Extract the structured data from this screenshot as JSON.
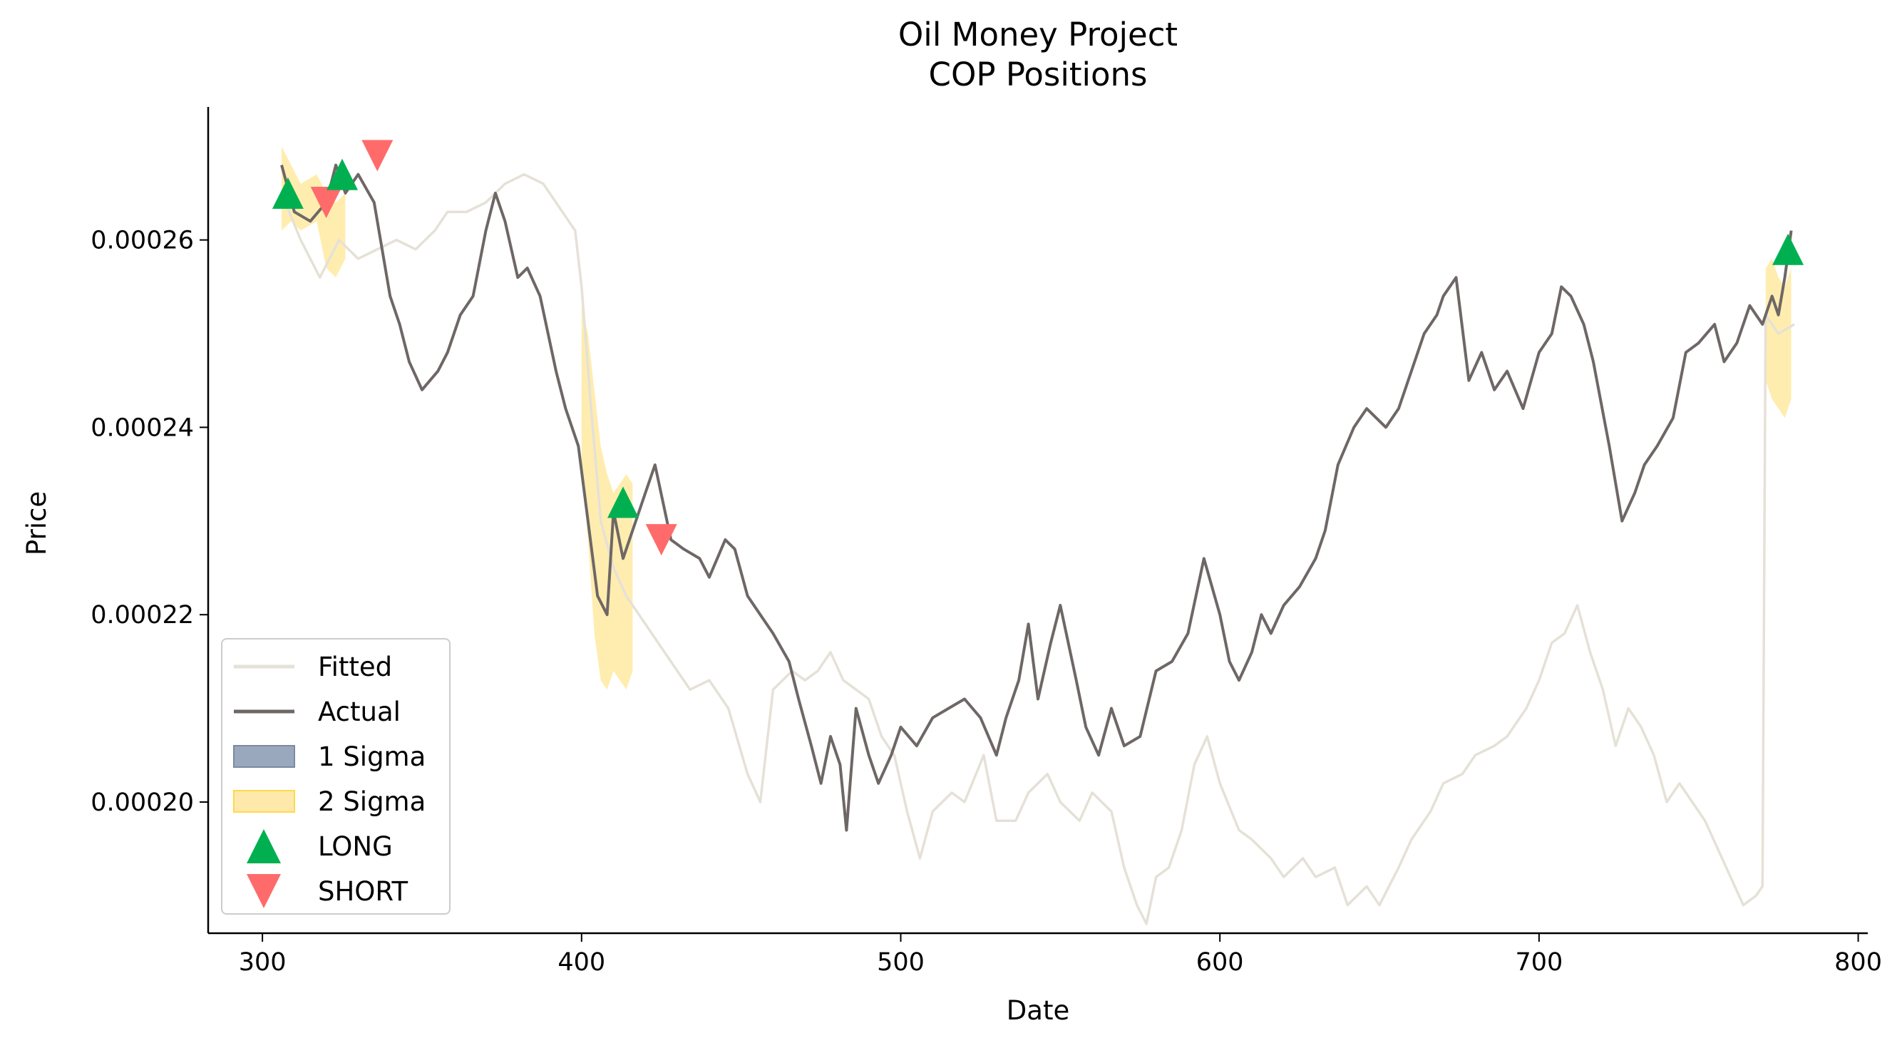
{
  "chart_data": {
    "type": "line",
    "title": "Oil Money Project",
    "subtitle": "COP Positions",
    "xlabel": "Date",
    "ylabel": "Price",
    "xlim": [
      283,
      803
    ],
    "ylim": [
      0.000186,
      0.0002742
    ],
    "x_ticks": [
      300,
      400,
      500,
      600,
      700,
      800
    ],
    "x_tick_labels": [
      "300",
      "400",
      "500",
      "600",
      "700",
      "800"
    ],
    "y_ticks": [
      0.0002,
      0.00022,
      0.00024,
      0.00026
    ],
    "y_tick_labels": [
      "0.00020",
      "0.00022",
      "0.00024",
      "0.00026"
    ],
    "grid": false,
    "legend_position": "bottom-left",
    "legend": [
      {
        "label": "Fitted",
        "kind": "line",
        "color": "#e5e1d7"
      },
      {
        "label": "Actual",
        "kind": "line",
        "color": "#6e6766"
      },
      {
        "label": "1 Sigma",
        "kind": "patch",
        "color": "#9aa8be"
      },
      {
        "label": "2 Sigma",
        "kind": "patch",
        "color": "#ffe9aa"
      },
      {
        "label": "LONG",
        "kind": "marker-up",
        "color": "#00b050"
      },
      {
        "label": "SHORT",
        "kind": "marker-down",
        "color": "#ff6b6b"
      }
    ],
    "colors": {
      "actual": "#6e6766",
      "fitted": "#e5e1d7",
      "sigma1": "#9aa8be",
      "sigma2": "#ffd84d",
      "long": "#00b050",
      "short": "#ff6b6b"
    },
    "series": [
      {
        "name": "Actual",
        "x": [
          306,
          310,
          315,
          320,
          323,
          326,
          330,
          335,
          340,
          343,
          346,
          350,
          355,
          358,
          362,
          366,
          370,
          373,
          376,
          380,
          383,
          387,
          392,
          395,
          399,
          402,
          405,
          408,
          410,
          413,
          416,
          420,
          423,
          428,
          432,
          437,
          440,
          445,
          448,
          452,
          456,
          460,
          465,
          468,
          472,
          475,
          478,
          481,
          483,
          486,
          490,
          493,
          497,
          500,
          505,
          510,
          515,
          520,
          525,
          530,
          533,
          537,
          540,
          543,
          547,
          550,
          555,
          558,
          562,
          566,
          570,
          575,
          580,
          585,
          590,
          595,
          600,
          603,
          606,
          610,
          613,
          616,
          620,
          625,
          630,
          633,
          637,
          642,
          646,
          652,
          656,
          660,
          664,
          668,
          670,
          674,
          678,
          682,
          686,
          690,
          695,
          700,
          704,
          707,
          710,
          714,
          717,
          722,
          726,
          730,
          733,
          737,
          742,
          746,
          750,
          755,
          758,
          762,
          766,
          770,
          773,
          775,
          777,
          779
        ],
        "y": [
          0.000268,
          0.000263,
          0.000262,
          0.000264,
          0.000268,
          0.000265,
          0.000267,
          0.000264,
          0.000254,
          0.000251,
          0.000247,
          0.000244,
          0.000246,
          0.000248,
          0.000252,
          0.000254,
          0.000261,
          0.000265,
          0.000262,
          0.000256,
          0.000257,
          0.000254,
          0.000246,
          0.000242,
          0.000238,
          0.00023,
          0.000222,
          0.00022,
          0.000231,
          0.000226,
          0.000229,
          0.000233,
          0.000236,
          0.000228,
          0.000227,
          0.000226,
          0.000224,
          0.000228,
          0.000227,
          0.000222,
          0.00022,
          0.000218,
          0.000215,
          0.000211,
          0.000206,
          0.000202,
          0.000207,
          0.000204,
          0.000197,
          0.00021,
          0.000205,
          0.000202,
          0.000205,
          0.000208,
          0.000206,
          0.000209,
          0.00021,
          0.000211,
          0.000209,
          0.000205,
          0.000209,
          0.000213,
          0.000219,
          0.000211,
          0.000217,
          0.000221,
          0.000213,
          0.000208,
          0.000205,
          0.00021,
          0.000206,
          0.000207,
          0.000214,
          0.000215,
          0.000218,
          0.000226,
          0.00022,
          0.000215,
          0.000213,
          0.000216,
          0.00022,
          0.000218,
          0.000221,
          0.000223,
          0.000226,
          0.000229,
          0.000236,
          0.00024,
          0.000242,
          0.00024,
          0.000242,
          0.000246,
          0.00025,
          0.000252,
          0.000254,
          0.000256,
          0.000245,
          0.000248,
          0.000244,
          0.000246,
          0.000242,
          0.000248,
          0.00025,
          0.000255,
          0.000254,
          0.000251,
          0.000247,
          0.000238,
          0.00023,
          0.000233,
          0.000236,
          0.000238,
          0.000241,
          0.000248,
          0.000249,
          0.000251,
          0.000247,
          0.000249,
          0.000253,
          0.000251,
          0.000254,
          0.000252,
          0.000256,
          0.000261
        ]
      },
      {
        "name": "Fitted",
        "x": [
          306,
          312,
          318,
          324,
          330,
          336,
          342,
          348,
          354,
          358,
          364,
          370,
          376,
          382,
          388,
          394,
          398,
          400,
          403,
          406,
          410,
          414,
          420,
          426,
          430,
          434,
          440,
          446,
          452,
          456,
          460,
          466,
          470,
          474,
          478,
          482,
          486,
          490,
          494,
          498,
          502,
          506,
          510,
          516,
          520,
          526,
          530,
          536,
          540,
          546,
          550,
          556,
          560,
          566,
          570,
          574,
          577,
          580,
          584,
          588,
          592,
          596,
          600,
          606,
          610,
          616,
          620,
          626,
          630,
          636,
          640,
          646,
          650,
          656,
          660,
          666,
          670,
          676,
          680,
          686,
          690,
          696,
          700,
          704,
          708,
          712,
          716,
          720,
          724,
          728,
          732,
          736,
          740,
          744,
          748,
          752,
          756,
          760,
          764,
          768,
          770,
          771,
          775,
          780
        ],
        "y": [
          0.000265,
          0.00026,
          0.000256,
          0.00026,
          0.000258,
          0.000259,
          0.00026,
          0.000259,
          0.000261,
          0.000263,
          0.000263,
          0.000264,
          0.000266,
          0.000267,
          0.000266,
          0.000263,
          0.000261,
          0.000255,
          0.000242,
          0.00023,
          0.000225,
          0.000222,
          0.000219,
          0.000216,
          0.000214,
          0.000212,
          0.000213,
          0.00021,
          0.000203,
          0.0002,
          0.000212,
          0.000214,
          0.000213,
          0.000214,
          0.000216,
          0.000213,
          0.000212,
          0.000211,
          0.000207,
          0.000205,
          0.000199,
          0.000194,
          0.000199,
          0.000201,
          0.0002,
          0.000205,
          0.000198,
          0.000198,
          0.000201,
          0.000203,
          0.0002,
          0.000198,
          0.000201,
          0.000199,
          0.000193,
          0.000189,
          0.000187,
          0.000192,
          0.000193,
          0.000197,
          0.000204,
          0.000207,
          0.000202,
          0.000197,
          0.000196,
          0.000194,
          0.000192,
          0.000194,
          0.000192,
          0.000193,
          0.000189,
          0.000191,
          0.000189,
          0.000193,
          0.000196,
          0.000199,
          0.000202,
          0.000203,
          0.000205,
          0.000206,
          0.000207,
          0.00021,
          0.000213,
          0.000217,
          0.000218,
          0.000221,
          0.000216,
          0.000212,
          0.000206,
          0.00021,
          0.000208,
          0.000205,
          0.0002,
          0.000202,
          0.0002,
          0.000198,
          0.000195,
          0.000192,
          0.000189,
          0.00019,
          0.000191,
          0.000252,
          0.00025,
          0.000251
        ]
      }
    ],
    "bands": [
      {
        "name": "2 Sigma",
        "x": [
          306,
          309,
          312,
          317,
          320,
          323,
          326
        ],
        "lower": [
          0.000261,
          0.000262,
          0.000261,
          0.000262,
          0.000257,
          0.000256,
          0.000258
        ],
        "upper": [
          0.00027,
          0.000268,
          0.000266,
          0.000267,
          0.000265,
          0.000264,
          0.000265
        ]
      },
      {
        "name": "2 Sigma",
        "x": [
          400,
          402,
          404,
          406,
          408,
          410,
          412,
          414,
          416
        ],
        "lower": [
          0.000236,
          0.000228,
          0.000218,
          0.000213,
          0.000212,
          0.000214,
          0.000213,
          0.000212,
          0.000214
        ],
        "upper": [
          0.000253,
          0.00025,
          0.000244,
          0.000238,
          0.000235,
          0.000233,
          0.000234,
          0.000235,
          0.000234
        ]
      },
      {
        "name": "2 Sigma",
        "x": [
          771,
          773,
          775,
          777,
          779
        ],
        "lower": [
          0.000245,
          0.000243,
          0.000242,
          0.000241,
          0.000243
        ],
        "upper": [
          0.000257,
          0.000258,
          0.000256,
          0.000255,
          0.000257
        ]
      }
    ],
    "markers": [
      {
        "type": "LONG",
        "x": 308,
        "y": 0.000265
      },
      {
        "type": "SHORT",
        "x": 320,
        "y": 0.000264
      },
      {
        "type": "LONG",
        "x": 325,
        "y": 0.000267
      },
      {
        "type": "SHORT",
        "x": 336,
        "y": 0.000269
      },
      {
        "type": "LONG",
        "x": 413,
        "y": 0.000232
      },
      {
        "type": "SHORT",
        "x": 425,
        "y": 0.000228
      },
      {
        "type": "LONG",
        "x": 778,
        "y": 0.000259
      }
    ]
  }
}
